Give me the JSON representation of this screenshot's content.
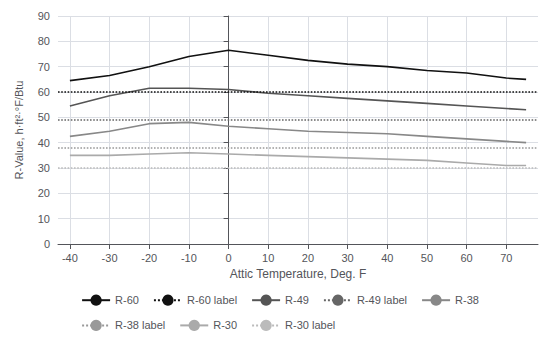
{
  "chart_data": {
    "type": "line",
    "xlabel": "Attic Temperature, Deg. F",
    "ylabel": "R-Value, h·ft²·°F/Btu",
    "x": [
      -40,
      -30,
      -20,
      -10,
      0,
      10,
      20,
      30,
      40,
      50,
      60,
      70,
      75
    ],
    "series": [
      {
        "name": "R-60",
        "type": "line",
        "color": "#111111",
        "line_style": "solid",
        "values": [
          64.5,
          66.5,
          70.0,
          74.0,
          76.5,
          74.5,
          72.5,
          71.0,
          70.0,
          68.5,
          67.5,
          65.5,
          65.0
        ]
      },
      {
        "name": "R-60 label",
        "type": "hline",
        "color": "#111111",
        "line_style": "dotted",
        "y": 60
      },
      {
        "name": "R-49",
        "type": "line",
        "color": "#555555",
        "line_style": "solid",
        "values": [
          54.5,
          58.5,
          61.5,
          61.5,
          61.0,
          59.5,
          58.5,
          57.5,
          56.5,
          55.5,
          54.5,
          53.5,
          53.0
        ]
      },
      {
        "name": "R-49 label",
        "type": "hline",
        "color": "#666666",
        "line_style": "dotted",
        "y": 49
      },
      {
        "name": "R-38",
        "type": "line",
        "color": "#888888",
        "line_style": "solid",
        "values": [
          42.5,
          44.5,
          47.5,
          48.0,
          46.5,
          45.5,
          44.5,
          44.0,
          43.5,
          42.5,
          41.5,
          40.5,
          40.0
        ]
      },
      {
        "name": "R-38 label",
        "type": "hline",
        "color": "#999999",
        "line_style": "dotted",
        "y": 38
      },
      {
        "name": "R-30",
        "type": "line",
        "color": "#aaaaaa",
        "line_style": "solid",
        "values": [
          35.0,
          35.0,
          35.5,
          36.0,
          35.5,
          35.0,
          34.5,
          34.0,
          33.5,
          33.0,
          32.0,
          31.0,
          31.0
        ]
      },
      {
        "name": "R-30 label",
        "type": "hline",
        "color": "#bbbbbb",
        "line_style": "dotted",
        "y": 30
      }
    ],
    "xlim": [
      -43,
      78
    ],
    "ylim": [
      0,
      90
    ],
    "xticks": [
      -40,
      -30,
      -20,
      -10,
      0,
      10,
      20,
      30,
      40,
      50,
      60,
      70
    ],
    "yticks": [
      0,
      10,
      20,
      30,
      40,
      50,
      60,
      70,
      80,
      90
    ],
    "grid": true,
    "legend": "bottom"
  }
}
